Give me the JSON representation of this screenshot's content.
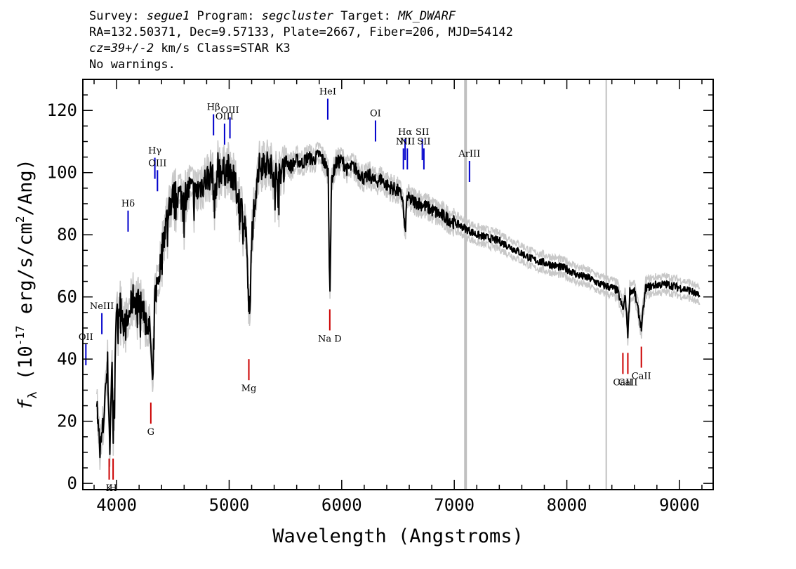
{
  "header": {
    "survey_label": "Survey: ",
    "survey": "segue1",
    "program_label": " Program: ",
    "program": "segcluster",
    "target_label": " Target: ",
    "target": "MK_DWARF",
    "line2": "RA=132.50371, Dec=9.57133, Plate=2667, Fiber=206, MJD=54142",
    "cz": "cz=39+/-2",
    "cz_rest": " km/s Class=STAR K3",
    "line4": "No warnings."
  },
  "chart_data": {
    "type": "line",
    "title": "",
    "xlabel": "Wavelength (Angstroms)",
    "ylabel_parts": [
      "f",
      "λ",
      " (10",
      "-17",
      " erg/s/cm",
      "2",
      "/Ang)"
    ],
    "xlim": [
      3700,
      9300
    ],
    "ylim": [
      -2,
      130
    ],
    "x_ticks": [
      4000,
      5000,
      6000,
      7000,
      8000,
      9000
    ],
    "x_tick_labels": [
      "4000",
      "5000",
      "6000",
      "7000",
      "8000",
      "9000"
    ],
    "y_ticks": [
      0,
      20,
      40,
      60,
      80,
      100,
      120
    ],
    "y_tick_labels": [
      "0",
      "20",
      "40",
      "60",
      "80",
      "100",
      "120"
    ],
    "colors": {
      "flux": "#000000",
      "error": "#c8c8c8",
      "emission": "#0000cc",
      "absorption": "#cc0000",
      "badpix": "#c0c0c0"
    },
    "series": [
      {
        "key": "flux",
        "x": [
          3820,
          3840,
          3860,
          3880,
          3900,
          3920,
          3940,
          3960,
          3970,
          3990,
          4010,
          4040,
          4070,
          4100,
          4120,
          4150,
          4200,
          4250,
          4300,
          4320,
          4340,
          4380,
          4420,
          4460,
          4500,
          4550,
          4600,
          4650,
          4700,
          4750,
          4800,
          4850,
          4870,
          4900,
          4950,
          5000,
          5050,
          5100,
          5150,
          5170,
          5185,
          5200,
          5250,
          5300,
          5350,
          5400,
          5450,
          5500,
          5550,
          5600,
          5650,
          5700,
          5750,
          5800,
          5850,
          5880,
          5890,
          5896,
          5910,
          5950,
          6000,
          6050,
          6100,
          6150,
          6200,
          6250,
          6300,
          6350,
          6400,
          6450,
          6500,
          6540,
          6563,
          6580,
          6620,
          6700,
          6800,
          6900,
          7000,
          7100,
          7200,
          7300,
          7400,
          7500,
          7600,
          7700,
          7800,
          7900,
          8000,
          8100,
          8200,
          8300,
          8400,
          8450,
          8498,
          8520,
          8542,
          8560,
          8600,
          8662,
          8700,
          8800,
          8900,
          9000,
          9100,
          9180
        ],
        "y": [
          30,
          15,
          12,
          18,
          30,
          38,
          12,
          40,
          14,
          48,
          55,
          58,
          50,
          52,
          56,
          60,
          58,
          55,
          48,
          30,
          60,
          68,
          80,
          88,
          92,
          93,
          92,
          95,
          93,
          96,
          98,
          100,
          90,
          102,
          100,
          102,
          96,
          90,
          82,
          60,
          52,
          80,
          100,
          104,
          102,
          100,
          98,
          104,
          102,
          104,
          103,
          105,
          104,
          106,
          103,
          100,
          70,
          64,
          98,
          103,
          104,
          101,
          102,
          100,
          98,
          99,
          97,
          98,
          96,
          95,
          94,
          92,
          80,
          92,
          91,
          90,
          88,
          86,
          84,
          82,
          80,
          79,
          78,
          76,
          74,
          72,
          71,
          70,
          69,
          67,
          66,
          64,
          63,
          62,
          56,
          60,
          48,
          62,
          62,
          50,
          63,
          64,
          64,
          63,
          62,
          60
        ]
      },
      {
        "key": "error",
        "x": [],
        "y": []
      }
    ],
    "bad_pixels": [
      7100,
      8350
    ],
    "emission_lines": [
      {
        "label": "OII",
        "x": 3727,
        "y": 38
      },
      {
        "label": "NeIII",
        "x": 3869,
        "y": 48
      },
      {
        "label": "Hδ",
        "x": 4102,
        "y": 81
      },
      {
        "label": "Hγ",
        "x": 4340,
        "y": 98
      },
      {
        "label": "OIII",
        "x": 4363,
        "y": 94
      },
      {
        "label": "Hβ",
        "x": 4861,
        "y": 112
      },
      {
        "label": "OIII",
        "x": 4959,
        "y": 109
      },
      {
        "label": "OIII",
        "x": 5007,
        "y": 111
      },
      {
        "label": "HeI",
        "x": 5876,
        "y": 117
      },
      {
        "label": "OI",
        "x": 6300,
        "y": 110
      },
      {
        "label": "NII",
        "x": 6548,
        "y": 101
      },
      {
        "label": "Hα",
        "x": 6563,
        "y": 104
      },
      {
        "label": "NII",
        "x": 6583,
        "y": 101
      },
      {
        "label": "SII",
        "x": 6716,
        "y": 104
      },
      {
        "label": "SII",
        "x": 6730,
        "y": 101
      },
      {
        "label": "ArIII",
        "x": 7135,
        "y": 97
      }
    ],
    "absorption_lines": [
      {
        "label": "K",
        "x": 3934,
        "y": 8
      },
      {
        "label": "H",
        "x": 3969,
        "y": 8
      },
      {
        "label": "G",
        "x": 4304,
        "y": 26
      },
      {
        "label": "Mg",
        "x": 5175,
        "y": 40
      },
      {
        "label": "Na D",
        "x": 5894,
        "y": 56
      },
      {
        "label": "CaII",
        "x": 8498,
        "y": 42
      },
      {
        "label": "CaII",
        "x": 8542,
        "y": 42
      },
      {
        "label": "CaII",
        "x": 8662,
        "y": 44
      }
    ]
  }
}
